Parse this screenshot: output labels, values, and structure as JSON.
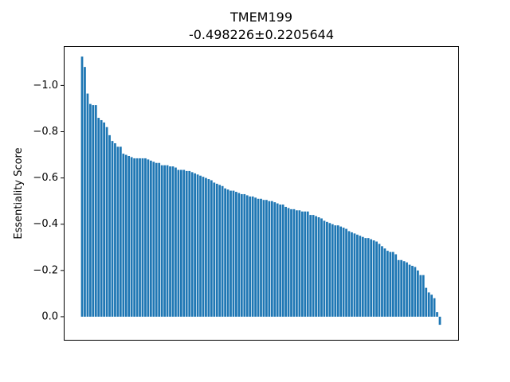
{
  "chart_data": {
    "type": "bar",
    "title": "TMEM199",
    "subtitle": "-0.498226±0.2205644",
    "xlabel": "",
    "ylabel": "Essentiality Score",
    "ylim": [
      -1.17,
      0.1
    ],
    "y_inverted": true,
    "yticks": [
      0.0,
      -0.2,
      -0.4,
      -0.6,
      -0.8,
      -1.0
    ],
    "ytick_labels": [
      "0.0",
      "−0.2",
      "−0.4",
      "−0.6",
      "−0.8",
      "−1.0"
    ],
    "bar_color": "#1f77b4",
    "grid": false,
    "legend": "none",
    "values": [
      -1.125,
      -1.08,
      -0.965,
      -0.92,
      -0.915,
      -0.915,
      -0.86,
      -0.85,
      -0.84,
      -0.82,
      -0.785,
      -0.76,
      -0.75,
      -0.735,
      -0.735,
      -0.705,
      -0.7,
      -0.695,
      -0.69,
      -0.685,
      -0.685,
      -0.685,
      -0.685,
      -0.685,
      -0.68,
      -0.675,
      -0.67,
      -0.665,
      -0.665,
      -0.655,
      -0.655,
      -0.655,
      -0.65,
      -0.65,
      -0.645,
      -0.635,
      -0.635,
      -0.635,
      -0.63,
      -0.63,
      -0.625,
      -0.62,
      -0.615,
      -0.61,
      -0.605,
      -0.6,
      -0.595,
      -0.59,
      -0.58,
      -0.575,
      -0.57,
      -0.565,
      -0.555,
      -0.55,
      -0.545,
      -0.545,
      -0.54,
      -0.535,
      -0.53,
      -0.53,
      -0.525,
      -0.52,
      -0.52,
      -0.515,
      -0.51,
      -0.51,
      -0.505,
      -0.505,
      -0.5,
      -0.5,
      -0.495,
      -0.49,
      -0.485,
      -0.485,
      -0.475,
      -0.47,
      -0.465,
      -0.465,
      -0.46,
      -0.46,
      -0.455,
      -0.455,
      -0.455,
      -0.44,
      -0.44,
      -0.435,
      -0.43,
      -0.425,
      -0.415,
      -0.41,
      -0.405,
      -0.4,
      -0.395,
      -0.395,
      -0.39,
      -0.385,
      -0.38,
      -0.37,
      -0.365,
      -0.36,
      -0.355,
      -0.35,
      -0.345,
      -0.34,
      -0.34,
      -0.335,
      -0.33,
      -0.325,
      -0.315,
      -0.305,
      -0.295,
      -0.285,
      -0.28,
      -0.28,
      -0.27,
      -0.245,
      -0.245,
      -0.24,
      -0.235,
      -0.225,
      -0.22,
      -0.215,
      -0.2,
      -0.18,
      -0.18,
      -0.125,
      -0.105,
      -0.095,
      -0.08,
      -0.02,
      0.035
    ]
  }
}
